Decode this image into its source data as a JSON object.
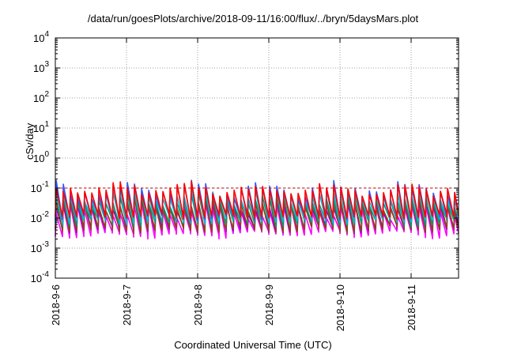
{
  "chart_data": {
    "type": "line",
    "title": "/data/run/goesPlots/archive/2018-09-11/16:00/flux/../bryn/5daysMars.plot",
    "xlabel": "Coordinated Universal Time (UTC)",
    "ylabel": "cSv/day",
    "yscale": "log",
    "ylim": [
      0.0001,
      10000
    ],
    "y_ticks": [
      {
        "base": "10",
        "exp": "-4"
      },
      {
        "base": "10",
        "exp": "-3"
      },
      {
        "base": "10",
        "exp": "-2"
      },
      {
        "base": "10",
        "exp": "-1"
      },
      {
        "base": "10",
        "exp": "0"
      },
      {
        "base": "10",
        "exp": "1"
      },
      {
        "base": "10",
        "exp": "2"
      },
      {
        "base": "10",
        "exp": "3"
      },
      {
        "base": "10",
        "exp": "4"
      }
    ],
    "x_ticks": [
      "2018-9-6",
      "2018-9-7",
      "2018-9-8",
      "2018-9-9",
      "2018-9-10",
      "2018-9-11"
    ],
    "xlim": [
      "2018-09-06 00:00",
      "2018-09-11 16:00"
    ],
    "grid": true,
    "reference_line": {
      "y": 0.1,
      "style": "dashed",
      "color": "#cc0000"
    },
    "oscillation": {
      "periods_per_day": 10,
      "peak_range": [
        0.03,
        0.19
      ],
      "trough_range": [
        0.002,
        0.012
      ]
    },
    "series": [
      {
        "color": "#ff00ff",
        "peak_range": [
          0.008,
          0.04
        ],
        "trough_range": [
          0.002,
          0.004
        ]
      },
      {
        "color": "#9400d3",
        "peak_range": [
          0.012,
          0.05
        ],
        "trough_range": [
          0.003,
          0.006
        ]
      },
      {
        "color": "#8b4513",
        "peak_range": [
          0.015,
          0.06
        ],
        "trough_range": [
          0.003,
          0.006
        ]
      },
      {
        "color": "#009e73",
        "peak_range": [
          0.02,
          0.08
        ],
        "trough_range": [
          0.005,
          0.01
        ]
      },
      {
        "color": "#00bcd4",
        "peak_range": [
          0.03,
          0.11
        ],
        "trough_range": [
          0.006,
          0.012
        ]
      },
      {
        "color": "#3355ff",
        "peak_range": [
          0.04,
          0.19
        ],
        "trough_range": [
          0.008,
          0.015
        ]
      },
      {
        "color": "#ff0000",
        "peak_range": [
          0.05,
          0.17
        ],
        "trough_range": [
          0.009,
          0.014
        ]
      }
    ]
  }
}
